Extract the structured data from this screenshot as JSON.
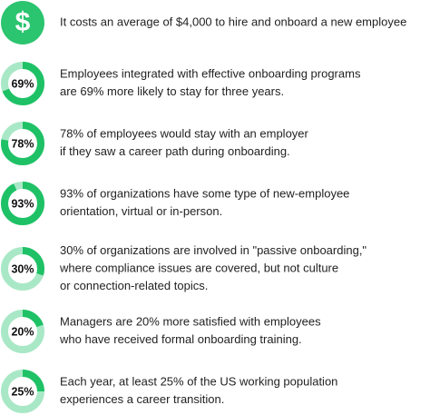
{
  "items": [
    {
      "icon": "$",
      "lines": [
        "It costs an average of $4,000 to hire and onboard a new employee"
      ]
    },
    {
      "value": 69,
      "value_label": "69%",
      "lines": [
        "Employees integrated with effective onboarding programs",
        "are 69% more likely to stay for three years."
      ]
    },
    {
      "value": 78,
      "value_label": "78%",
      "lines": [
        "78% of employees would stay with an employer",
        "if they saw a career path during onboarding."
      ]
    },
    {
      "value": 93,
      "value_label": "93%",
      "lines": [
        "93% of organizations have some type of new-employee",
        "orientation, virtual or in-person."
      ]
    },
    {
      "value": 30,
      "value_label": "30%",
      "lines": [
        "30% of organizations are involved in \"passive onboarding,\"",
        "where compliance issues are covered, but not culture",
        "or connection-related topics."
      ]
    },
    {
      "value": 20,
      "value_label": "20%",
      "lines": [
        "Managers are 20% more satisfied with employees",
        "who have received formal onboarding training."
      ]
    },
    {
      "value": 25,
      "value_label": "25%",
      "lines": [
        "Each year, at least 25% of the US working population",
        "experiences a career transition."
      ]
    }
  ]
}
